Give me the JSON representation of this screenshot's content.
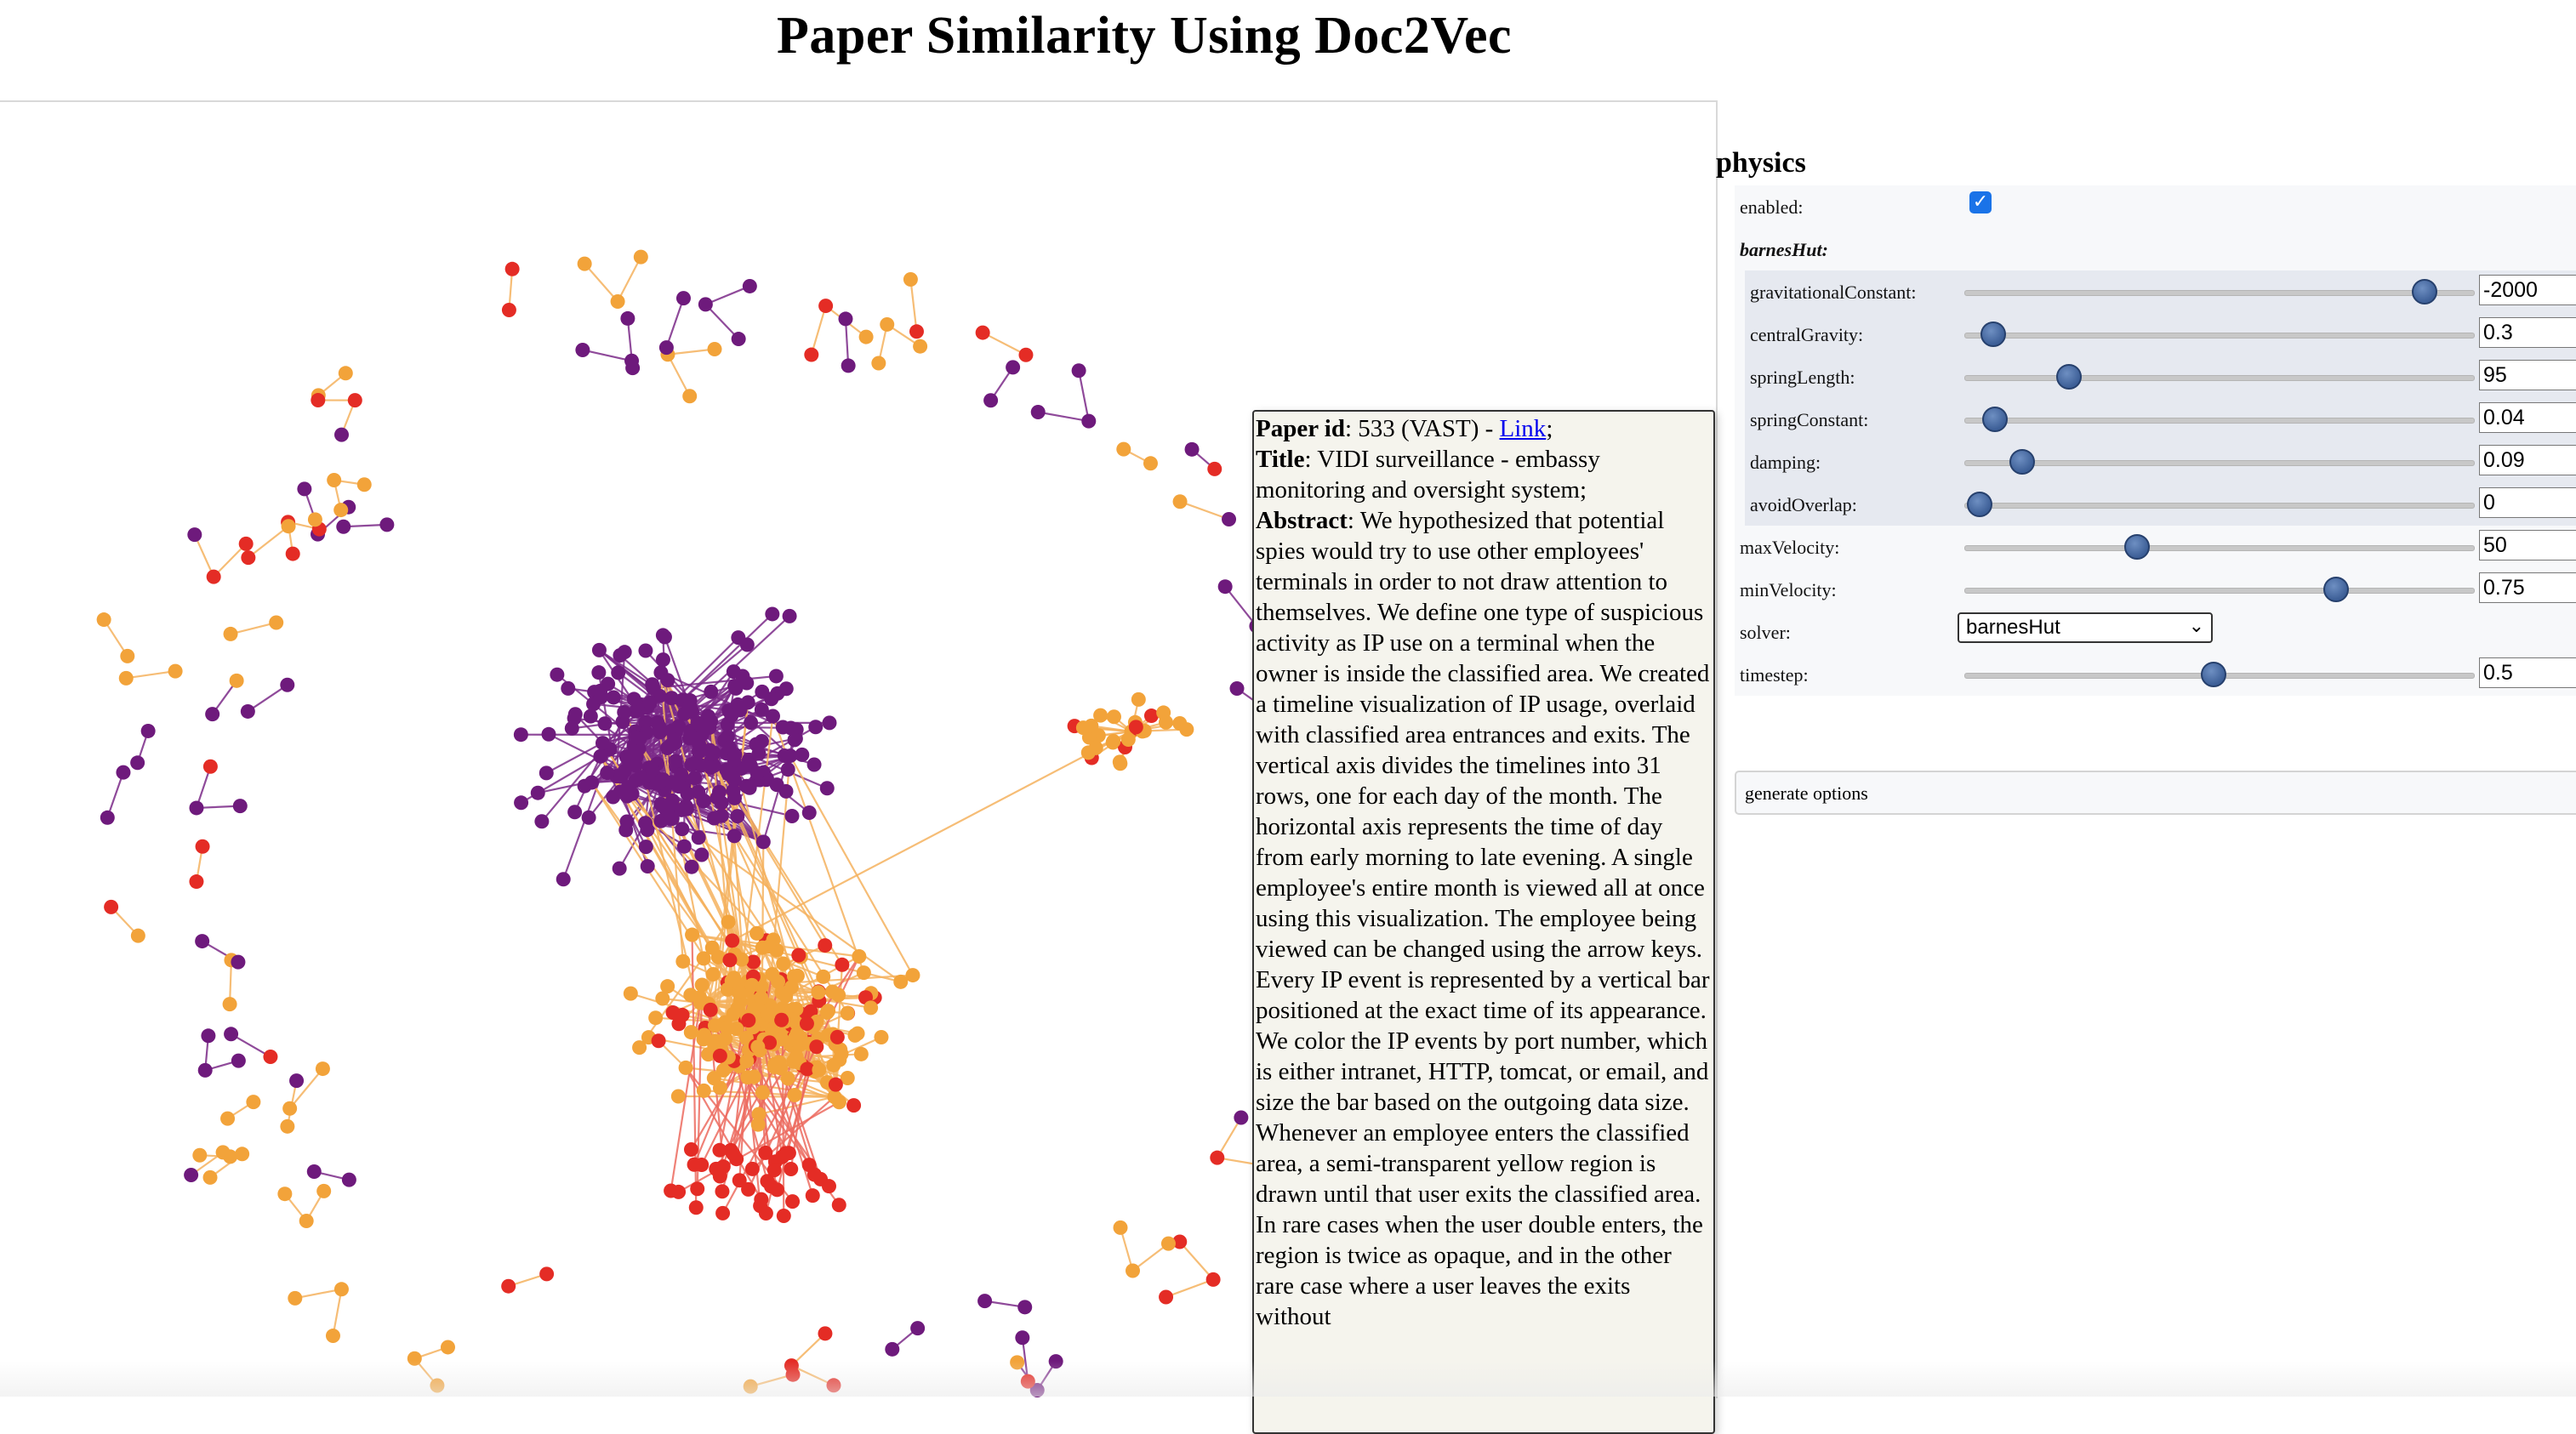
{
  "page": {
    "title": "Paper Similarity Using Doc2Vec"
  },
  "network": {
    "colors": {
      "purple": "#6e1a7c",
      "orange": "#f2a33a",
      "red": "#e42c25",
      "edge_purple": "#7b2a88",
      "edge_orange": "#f4b25e"
    }
  },
  "tooltip": {
    "paper_id_label": "Paper id",
    "paper_id_value": ": 533 (VAST) - ",
    "link_text": "Link",
    "link_suffix": ";",
    "title_label": "Title",
    "title_value": ": VIDI surveillance - embassy monitoring and oversight system;",
    "abstract_label": "Abstract",
    "abstract_value": ": We hypothesized that potential spies would try to use other employees' terminals in order to not draw attention to themselves. We define one type of suspicious activity as IP use on a terminal when the owner is inside the classified area. We created a timeline visualization of IP usage, overlaid with classified area entrances and exits. The vertical axis divides the timelines into 31 rows, one for each day of the month. The horizontal axis represents the time of day from early morning to late evening. A single employee's entire month is viewed all at once using this visualization. The employee being viewed can be changed using the arrow keys. Every IP event is represented by a vertical bar positioned at the exact time of its appearance. We color the IP events by port number, which is either intranet, HTTP, tomcat, or email, and size the bar based on the outgoing data size. Whenever an employee enters the classified area, a semi-transparent yellow region is drawn until that user exits the classified area. In rare cases when the user double enters, the region is twice as opaque, and in the other rare case where a user leaves the exits without"
  },
  "config": {
    "header": "physics",
    "enabled_label": "enabled:",
    "enabled_checked": true,
    "barneshut_label": "barnesHut:",
    "sliders": [
      {
        "label": "gravitationalConstant:",
        "value": "-2000",
        "fraction": 0.905,
        "nested": true
      },
      {
        "label": "centralGravity:",
        "value": "0.3",
        "fraction": 0.057,
        "nested": true
      },
      {
        "label": "springLength:",
        "value": "95",
        "fraction": 0.205,
        "nested": true
      },
      {
        "label": "springConstant:",
        "value": "0.04",
        "fraction": 0.06,
        "nested": true
      },
      {
        "label": "damping:",
        "value": "0.09",
        "fraction": 0.113,
        "nested": true
      },
      {
        "label": "avoidOverlap:",
        "value": "0",
        "fraction": 0.03,
        "nested": true
      },
      {
        "label": "maxVelocity:",
        "value": "50",
        "fraction": 0.34,
        "nested": false
      },
      {
        "label": "minVelocity:",
        "value": "0.75",
        "fraction": 0.73,
        "nested": false
      }
    ],
    "solver_label": "solver:",
    "solver_value": "barnesHut",
    "timestep": {
      "label": "timestep:",
      "value": "0.5",
      "fraction": 0.49
    },
    "generate_options_label": "generate options"
  }
}
